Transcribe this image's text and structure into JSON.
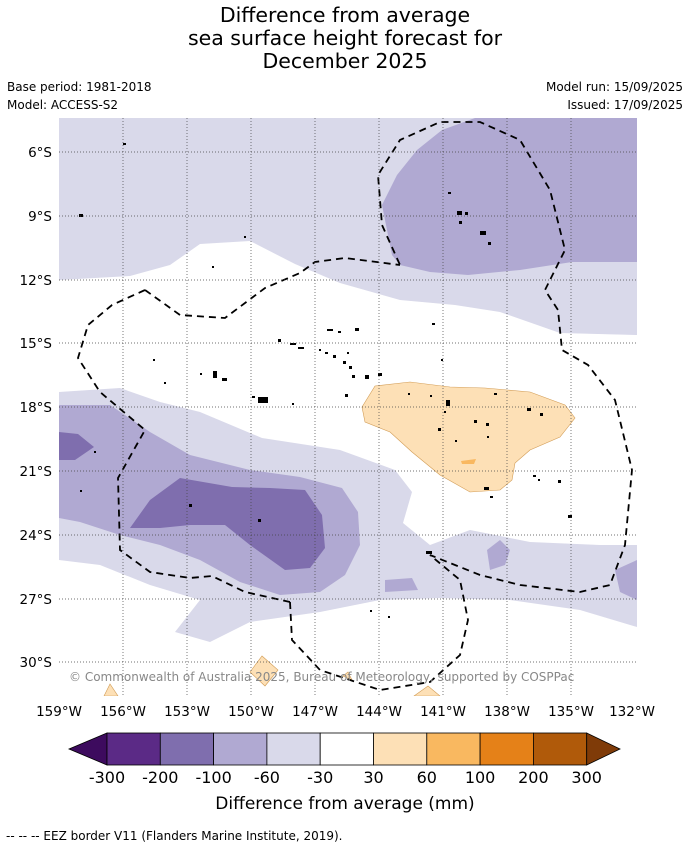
{
  "title": {
    "line1": "Difference from average",
    "line2": "sea surface height forecast for",
    "line3": "December 2025"
  },
  "meta": {
    "base_period": "Base period: 1981-2018",
    "model": "Model: ACCESS-S2",
    "model_run": "Model run: 15/09/2025",
    "issued": "Issued: 17/09/2025"
  },
  "map": {
    "lat_labels": [
      "6°S",
      "9°S",
      "12°S",
      "15°S",
      "18°S",
      "21°S",
      "24°S",
      "27°S",
      "30°S"
    ],
    "lon_labels": [
      "159°W",
      "156°W",
      "153°W",
      "150°W",
      "147°W",
      "144°W",
      "141°W",
      "138°W",
      "135°W",
      "132°W"
    ],
    "copyright": "© Commonwealth of Australia 2025, Bureau of Meteorology, supported by COSPPac"
  },
  "colorbar": {
    "ticks": [
      "-300",
      "-200",
      "-100",
      "-60",
      "-30",
      "30",
      "60",
      "100",
      "200",
      "300"
    ],
    "colors": [
      "#3d0b5e",
      "#5b2a86",
      "#7f6eae",
      "#b0a9d2",
      "#d9d9ea",
      "#ffffff",
      "#fde0b6",
      "#f9b860",
      "#e58118",
      "#b05a0a",
      "#7f3b08"
    ],
    "label": "Difference from average (mm)"
  },
  "footnote": "--  --  -- EEZ border V11 (Flanders Marine Institute, 2019)."
}
